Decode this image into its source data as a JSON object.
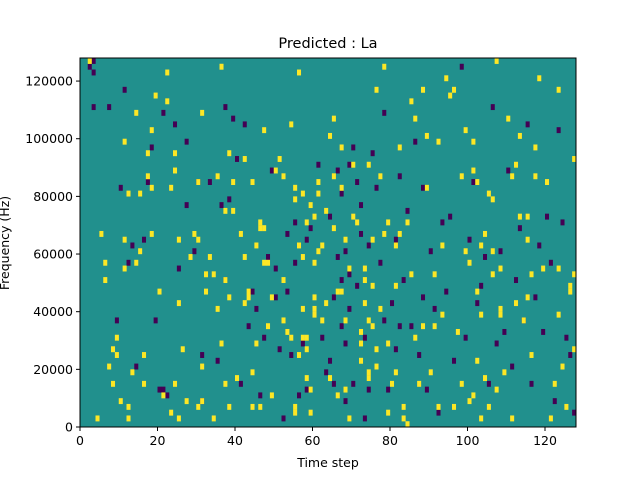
{
  "chart_data": {
    "type": "heatmap",
    "title": "Predicted : La",
    "xlabel": "Time step",
    "ylabel": "Frequency (Hz)",
    "xlim": [
      0,
      128
    ],
    "ylim": [
      0,
      128000
    ],
    "x_ticks": [
      "0",
      "20",
      "40",
      "60",
      "80",
      "100",
      "120"
    ],
    "y_ticks": [
      "0",
      "20000",
      "40000",
      "60000",
      "80000",
      "100000",
      "120000"
    ],
    "n_time_steps": 128,
    "n_frequency_bins": 64,
    "bin_width_hz": 2000,
    "value_levels": [
      -1,
      0,
      1
    ],
    "colormap": "viridis",
    "colors": {
      "low": "#440154",
      "mid": "#21908d",
      "high": "#fde725"
    },
    "background_value": 0,
    "cells_high": [
      [
        2,
        126000
      ],
      [
        4,
        2000
      ],
      [
        5,
        66000
      ],
      [
        6,
        56000
      ],
      [
        6,
        50000
      ],
      [
        7,
        20000
      ],
      [
        8,
        26000
      ],
      [
        8,
        14000
      ],
      [
        9,
        30000
      ],
      [
        9,
        24000
      ],
      [
        10,
        8000
      ],
      [
        11,
        64000
      ],
      [
        11,
        54000
      ],
      [
        11,
        98000
      ],
      [
        12,
        6000
      ],
      [
        12,
        80000
      ],
      [
        12,
        2000
      ],
      [
        13,
        18000
      ],
      [
        14,
        108000
      ],
      [
        14,
        56000
      ],
      [
        15,
        60000
      ],
      [
        15,
        80000
      ],
      [
        16,
        14000
      ],
      [
        16,
        24000
      ],
      [
        17,
        94000
      ],
      [
        17,
        86000
      ],
      [
        18,
        82000
      ],
      [
        18,
        66000
      ],
      [
        18,
        102000
      ],
      [
        19,
        114000
      ],
      [
        20,
        46000
      ],
      [
        21,
        10000
      ],
      [
        22,
        112000
      ],
      [
        22,
        122000
      ],
      [
        23,
        82000
      ],
      [
        23,
        4000
      ],
      [
        24,
        14000
      ],
      [
        24,
        94000
      ],
      [
        24,
        88000
      ],
      [
        25,
        42000
      ],
      [
        25,
        64000
      ],
      [
        25,
        2000
      ],
      [
        26,
        26000
      ],
      [
        27,
        8000
      ],
      [
        28,
        58000
      ],
      [
        29,
        66000
      ],
      [
        30,
        6000
      ],
      [
        30,
        64000
      ],
      [
        30,
        84000
      ],
      [
        31,
        20000
      ],
      [
        31,
        8000
      ],
      [
        31,
        108000
      ],
      [
        32,
        46000
      ],
      [
        32,
        52000
      ],
      [
        33,
        58000
      ],
      [
        34,
        2000
      ],
      [
        34,
        52000
      ],
      [
        35,
        86000
      ],
      [
        35,
        40000
      ],
      [
        36,
        124000
      ],
      [
        36,
        28000
      ],
      [
        37,
        50000
      ],
      [
        37,
        74000
      ],
      [
        37,
        14000
      ],
      [
        38,
        44000
      ],
      [
        38,
        94000
      ],
      [
        38,
        6000
      ],
      [
        39,
        74000
      ],
      [
        39,
        84000
      ],
      [
        40,
        16000
      ],
      [
        41,
        66000
      ],
      [
        42,
        92000
      ],
      [
        42,
        58000
      ],
      [
        42,
        42000
      ],
      [
        43,
        44000
      ],
      [
        43,
        46000
      ],
      [
        44,
        84000
      ],
      [
        44,
        18000
      ],
      [
        44,
        6000
      ],
      [
        45,
        28000
      ],
      [
        45,
        62000
      ],
      [
        46,
        68000
      ],
      [
        46,
        70000
      ],
      [
        46,
        6000
      ],
      [
        47,
        68000
      ],
      [
        47,
        56000
      ],
      [
        47,
        102000
      ],
      [
        48,
        34000
      ],
      [
        48,
        56000
      ],
      [
        49,
        44000
      ],
      [
        49,
        10000
      ],
      [
        50,
        88000
      ],
      [
        51,
        92000
      ],
      [
        52,
        36000
      ],
      [
        52,
        50000
      ],
      [
        52,
        86000
      ],
      [
        53,
        32000
      ],
      [
        54,
        30000
      ],
      [
        54,
        104000
      ],
      [
        55,
        4000
      ],
      [
        55,
        78000
      ],
      [
        55,
        82000
      ],
      [
        55,
        6000
      ],
      [
        56,
        62000
      ],
      [
        56,
        24000
      ],
      [
        56,
        122000
      ],
      [
        57,
        40000
      ],
      [
        57,
        80000
      ],
      [
        57,
        58000
      ],
      [
        57,
        30000
      ],
      [
        58,
        70000
      ],
      [
        58,
        26000
      ],
      [
        58,
        16000
      ],
      [
        58,
        30000
      ],
      [
        59,
        76000
      ],
      [
        59,
        12000
      ],
      [
        59,
        4000
      ],
      [
        60,
        40000
      ],
      [
        60,
        72000
      ],
      [
        60,
        56000
      ],
      [
        60,
        44000
      ],
      [
        60,
        38000
      ],
      [
        61,
        60000
      ],
      [
        61,
        84000
      ],
      [
        61,
        80000
      ],
      [
        62,
        36000
      ],
      [
        62,
        62000
      ],
      [
        63,
        74000
      ],
      [
        63,
        42000
      ],
      [
        64,
        100000
      ],
      [
        64,
        16000
      ],
      [
        65,
        86000
      ],
      [
        65,
        68000
      ],
      [
        65,
        106000
      ],
      [
        66,
        10000
      ],
      [
        66,
        46000
      ],
      [
        67,
        82000
      ],
      [
        67,
        46000
      ],
      [
        67,
        96000
      ],
      [
        68,
        12000
      ],
      [
        68,
        64000
      ],
      [
        68,
        36000
      ],
      [
        69,
        54000
      ],
      [
        69,
        2000
      ],
      [
        70,
        90000
      ],
      [
        70,
        72000
      ],
      [
        71,
        70000
      ],
      [
        72,
        32000
      ],
      [
        72,
        28000
      ],
      [
        72,
        22000
      ],
      [
        73,
        42000
      ],
      [
        73,
        54000
      ],
      [
        73,
        50000
      ],
      [
        74,
        90000
      ],
      [
        74,
        36000
      ],
      [
        74,
        18000
      ],
      [
        74,
        16000
      ],
      [
        75,
        64000
      ],
      [
        75,
        34000
      ],
      [
        75,
        48000
      ],
      [
        76,
        116000
      ],
      [
        76,
        20000
      ],
      [
        76,
        26000
      ],
      [
        77,
        86000
      ],
      [
        77,
        40000
      ],
      [
        78,
        66000
      ],
      [
        78,
        124000
      ],
      [
        79,
        28000
      ],
      [
        79,
        70000
      ],
      [
        79,
        4000
      ],
      [
        80,
        14000
      ],
      [
        81,
        62000
      ],
      [
        81,
        48000
      ],
      [
        81,
        18000
      ],
      [
        82,
        96000
      ],
      [
        82,
        66000
      ],
      [
        83,
        2000
      ],
      [
        83,
        6000
      ],
      [
        84,
        70000
      ],
      [
        84,
        0
      ],
      [
        85,
        112000
      ],
      [
        85,
        52000
      ],
      [
        86,
        30000
      ],
      [
        86,
        106000
      ],
      [
        87,
        14000
      ],
      [
        88,
        116000
      ],
      [
        88,
        34000
      ],
      [
        89,
        82000
      ],
      [
        89,
        100000
      ],
      [
        90,
        18000
      ],
      [
        91,
        34000
      ],
      [
        91,
        52000
      ],
      [
        92,
        98000
      ],
      [
        92,
        6000
      ],
      [
        93,
        62000
      ],
      [
        93,
        38000
      ],
      [
        94,
        120000
      ],
      [
        95,
        114000
      ],
      [
        96,
        116000
      ],
      [
        96,
        6000
      ],
      [
        97,
        32000
      ],
      [
        98,
        14000
      ],
      [
        98,
        86000
      ],
      [
        99,
        102000
      ],
      [
        99,
        60000
      ],
      [
        100,
        56000
      ],
      [
        100,
        8000
      ],
      [
        101,
        10000
      ],
      [
        101,
        88000
      ],
      [
        101,
        98000
      ],
      [
        102,
        22000
      ],
      [
        102,
        84000
      ],
      [
        102,
        46000
      ],
      [
        103,
        38000
      ],
      [
        103,
        62000
      ],
      [
        103,
        2000
      ],
      [
        104,
        66000
      ],
      [
        104,
        16000
      ],
      [
        105,
        80000
      ],
      [
        105,
        6000
      ],
      [
        106,
        78000
      ],
      [
        106,
        52000
      ],
      [
        106,
        60000
      ],
      [
        107,
        12000
      ],
      [
        107,
        126000
      ],
      [
        108,
        40000
      ],
      [
        108,
        54000
      ],
      [
        108,
        38000
      ],
      [
        109,
        18000
      ],
      [
        110,
        106000
      ],
      [
        111,
        86000
      ],
      [
        111,
        2000
      ],
      [
        112,
        42000
      ],
      [
        112,
        90000
      ],
      [
        113,
        100000
      ],
      [
        113,
        72000
      ],
      [
        114,
        36000
      ],
      [
        115,
        44000
      ],
      [
        115,
        64000
      ],
      [
        115,
        72000
      ],
      [
        116,
        52000
      ],
      [
        116,
        24000
      ],
      [
        117,
        96000
      ],
      [
        117,
        86000
      ],
      [
        118,
        120000
      ],
      [
        119,
        54000
      ],
      [
        120,
        84000
      ],
      [
        121,
        2000
      ],
      [
        122,
        14000
      ],
      [
        123,
        116000
      ],
      [
        123,
        54000
      ],
      [
        123,
        38000
      ],
      [
        124,
        20000
      ],
      [
        125,
        6000
      ],
      [
        126,
        46000
      ],
      [
        126,
        48000
      ],
      [
        127,
        52000
      ],
      [
        127,
        26000
      ],
      [
        127,
        92000
      ]
    ],
    "cells_low": [
      [
        2,
        124000
      ],
      [
        3,
        122000
      ],
      [
        3,
        126000
      ],
      [
        3,
        110000
      ],
      [
        7,
        110000
      ],
      [
        9,
        36000
      ],
      [
        10,
        82000
      ],
      [
        11,
        116000
      ],
      [
        12,
        56000
      ],
      [
        13,
        62000
      ],
      [
        14,
        20000
      ],
      [
        16,
        64000
      ],
      [
        17,
        84000
      ],
      [
        18,
        96000
      ],
      [
        19,
        36000
      ],
      [
        20,
        12000
      ],
      [
        21,
        12000
      ],
      [
        21,
        108000
      ],
      [
        22,
        10000
      ],
      [
        24,
        104000
      ],
      [
        25,
        54000
      ],
      [
        27,
        98000
      ],
      [
        27,
        76000
      ],
      [
        29,
        60000
      ],
      [
        30,
        84000
      ],
      [
        31,
        24000
      ],
      [
        31,
        8000
      ],
      [
        33,
        84000
      ],
      [
        35,
        22000
      ],
      [
        36,
        76000
      ],
      [
        37,
        110000
      ],
      [
        37,
        50000
      ],
      [
        38,
        78000
      ],
      [
        39,
        106000
      ],
      [
        40,
        92000
      ],
      [
        41,
        14000
      ],
      [
        42,
        104000
      ],
      [
        43,
        34000
      ],
      [
        44,
        46000
      ],
      [
        45,
        40000
      ],
      [
        46,
        10000
      ],
      [
        47,
        30000
      ],
      [
        48,
        58000
      ],
      [
        49,
        88000
      ],
      [
        50,
        44000
      ],
      [
        50,
        54000
      ],
      [
        51,
        26000
      ],
      [
        52,
        2000
      ],
      [
        53,
        66000
      ],
      [
        53,
        46000
      ],
      [
        54,
        24000
      ],
      [
        55,
        70000
      ],
      [
        55,
        56000
      ],
      [
        56,
        10000
      ],
      [
        57,
        28000
      ],
      [
        58,
        12000
      ],
      [
        58,
        64000
      ],
      [
        59,
        68000
      ],
      [
        61,
        90000
      ],
      [
        62,
        30000
      ],
      [
        63,
        18000
      ],
      [
        64,
        72000
      ],
      [
        64,
        22000
      ],
      [
        65,
        14000
      ],
      [
        65,
        44000
      ],
      [
        66,
        88000
      ],
      [
        66,
        58000
      ],
      [
        67,
        34000
      ],
      [
        67,
        50000
      ],
      [
        67,
        80000
      ],
      [
        68,
        60000
      ],
      [
        68,
        28000
      ],
      [
        68,
        8000
      ],
      [
        69,
        40000
      ],
      [
        69,
        90000
      ],
      [
        69,
        52000
      ],
      [
        70,
        96000
      ],
      [
        70,
        14000
      ],
      [
        71,
        84000
      ],
      [
        71,
        48000
      ],
      [
        72,
        76000
      ],
      [
        72,
        66000
      ],
      [
        73,
        30000
      ],
      [
        73,
        2000
      ],
      [
        74,
        62000
      ],
      [
        74,
        12000
      ],
      [
        75,
        94000
      ],
      [
        76,
        82000
      ],
      [
        77,
        56000
      ],
      [
        78,
        108000
      ],
      [
        78,
        36000
      ],
      [
        79,
        12000
      ],
      [
        80,
        42000
      ],
      [
        81,
        64000
      ],
      [
        81,
        26000
      ],
      [
        82,
        34000
      ],
      [
        82,
        86000
      ],
      [
        83,
        50000
      ],
      [
        84,
        74000
      ],
      [
        85,
        34000
      ],
      [
        86,
        98000
      ],
      [
        87,
        24000
      ],
      [
        88,
        82000
      ],
      [
        88,
        44000
      ],
      [
        89,
        12000
      ],
      [
        90,
        60000
      ],
      [
        91,
        40000
      ],
      [
        92,
        4000
      ],
      [
        93,
        70000
      ],
      [
        94,
        46000
      ],
      [
        95,
        72000
      ],
      [
        96,
        22000
      ],
      [
        98,
        124000
      ],
      [
        99,
        30000
      ],
      [
        100,
        64000
      ],
      [
        101,
        84000
      ],
      [
        102,
        42000
      ],
      [
        103,
        48000
      ],
      [
        104,
        58000
      ],
      [
        105,
        14000
      ],
      [
        106,
        110000
      ],
      [
        107,
        28000
      ],
      [
        108,
        60000
      ],
      [
        109,
        32000
      ],
      [
        110,
        88000
      ],
      [
        111,
        20000
      ],
      [
        112,
        50000
      ],
      [
        113,
        68000
      ],
      [
        114,
        36000
      ],
      [
        115,
        104000
      ],
      [
        116,
        14000
      ],
      [
        117,
        44000
      ],
      [
        118,
        62000
      ],
      [
        119,
        32000
      ],
      [
        120,
        72000
      ],
      [
        121,
        56000
      ],
      [
        122,
        8000
      ],
      [
        123,
        102000
      ],
      [
        124,
        70000
      ],
      [
        125,
        30000
      ],
      [
        126,
        24000
      ],
      [
        127,
        4000
      ]
    ]
  }
}
